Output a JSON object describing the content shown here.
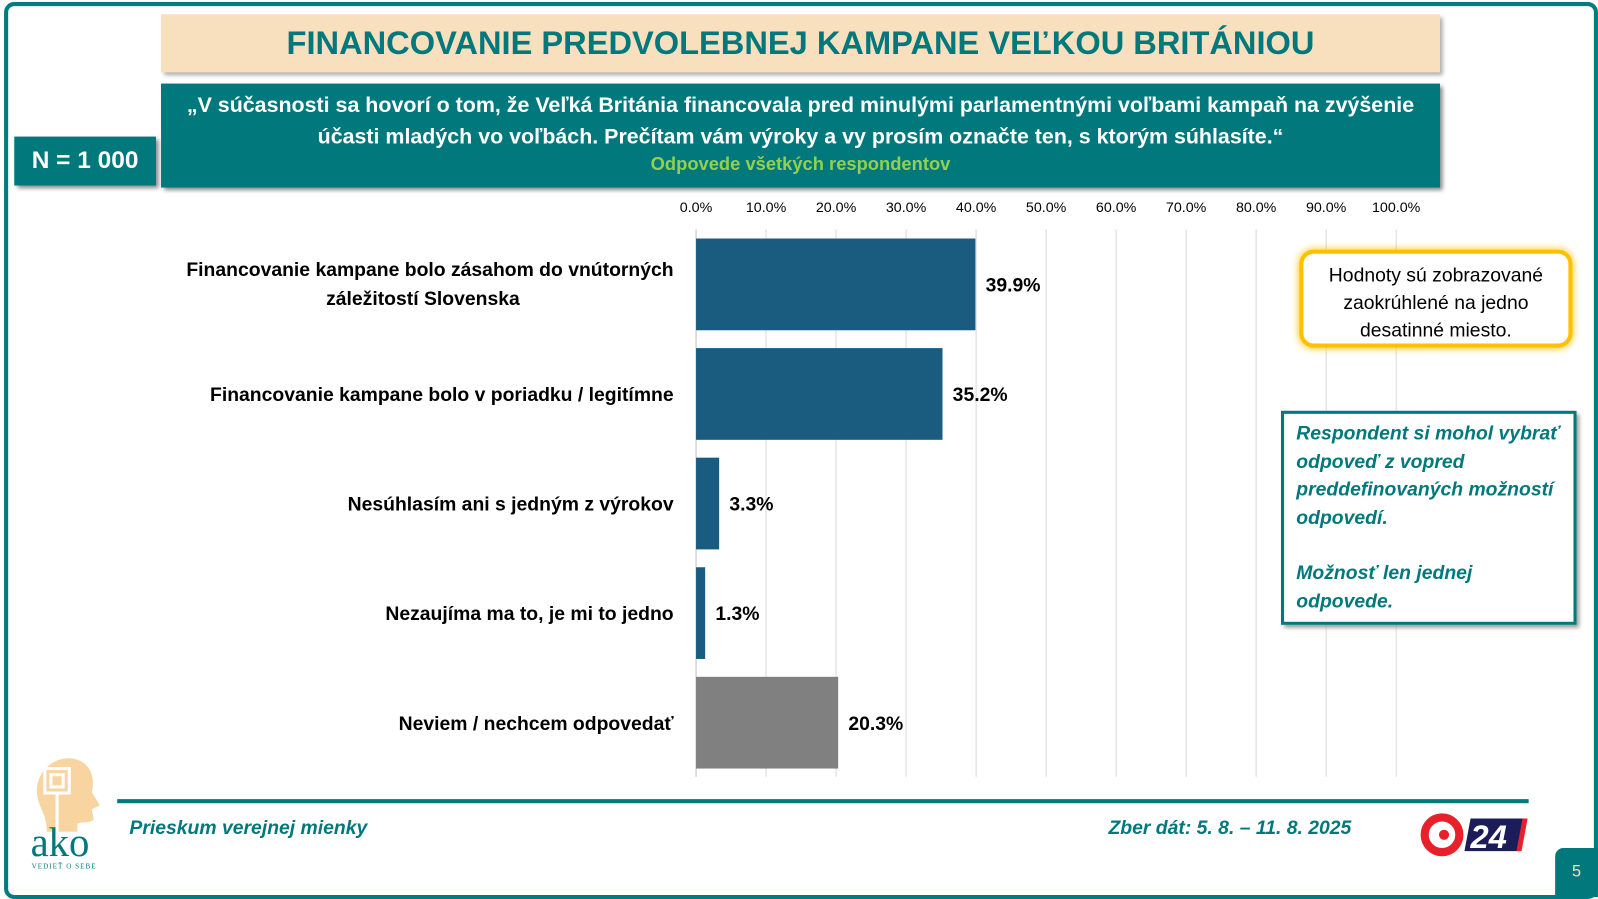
{
  "header": {
    "title": "FINANCOVANIE PREDVOLEBNEJ KAMPANE VEĽKOU BRITÁNIOU",
    "question": "„V súčasnosti sa hovorí o tom, že Veľká Británia financovala pred minulými parlamentnými voľbami kampaň na zvýšenie účasti mladých vo voľbách. Prečítam vám výroky a vy prosím označte ten, s ktorým súhlasíte.“",
    "subtitle": "Odpovede všetkých respondentov",
    "sample": "N = 1 000"
  },
  "chart_data": {
    "type": "bar",
    "orientation": "horizontal",
    "categories": [
      "Financovanie kampane bolo zásahom do vnútorných záležitostí Slovenska",
      "Financovanie kampane bolo v poriadku / legitímne",
      "Nesúhlasím ani s jedným z výrokov",
      "Nezaujíma ma to, je mi to jedno",
      "Neviem / nechcem odpovedať"
    ],
    "values": [
      39.9,
      35.2,
      3.3,
      1.3,
      20.3
    ],
    "value_labels": [
      "39.9%",
      "35.2%",
      "3.3%",
      "1.3%",
      "20.3%"
    ],
    "colors": [
      "#1a5c80",
      "#1a5c80",
      "#1a5c80",
      "#1a5c80",
      "#808080"
    ],
    "xlim": [
      0,
      100
    ],
    "ticks": [
      "0.0%",
      "10.0%",
      "20.0%",
      "30.0%",
      "40.0%",
      "50.0%",
      "60.0%",
      "70.0%",
      "80.0%",
      "90.0%",
      "100.0%"
    ],
    "axis_position": "top",
    "grid": true
  },
  "notes": {
    "rounding": "Hodnoty sú zobrazované zaokrúhlené na jedno desatinné miesto.",
    "respondent": "Respondent si mohol vybrať odpoveď z vopred preddefinovaných možností odpovedí.",
    "single": "Možnosť len jednej odpovede."
  },
  "footer": {
    "survey": "Prieskum verejnej mienky",
    "dates": "Zber dát: 5. 8. – 11. 8. 2025",
    "page": "5",
    "logo_text": "ako",
    "logo_tagline": "VEDIEŤ O SEBE",
    "partner_logo": "24"
  },
  "colors": {
    "teal": "#00787c",
    "beige": "#f8dfbd",
    "bar": "#1a5c80",
    "gray": "#808080",
    "green": "#92d050"
  }
}
